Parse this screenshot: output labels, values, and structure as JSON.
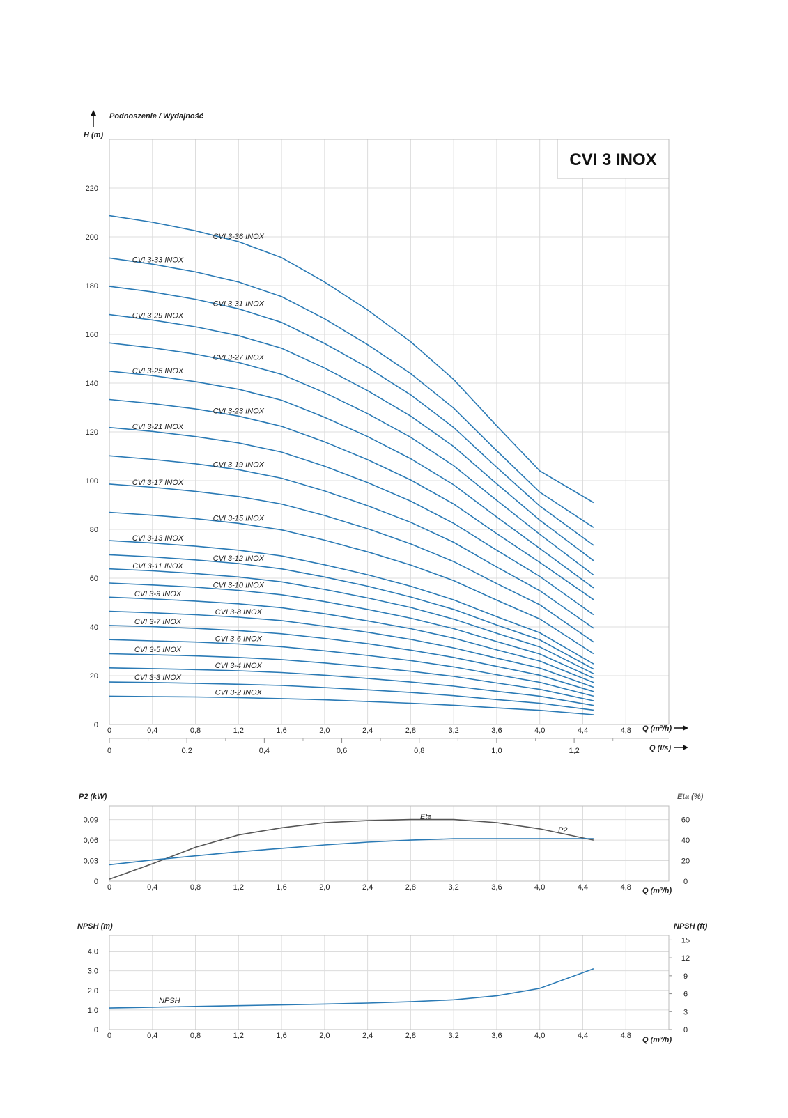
{
  "model_title": "CVI 3 INOX",
  "colors": {
    "curve": "#2a7ab5",
    "eta": "#555555",
    "grid": "#dcdcdc",
    "frame": "#bcbcbc"
  },
  "chart_data": [
    {
      "id": "head",
      "type": "line",
      "header": "Podnoszenie / Wydajność",
      "ylabel": "H (m)",
      "xlabel": "Q (m³/h)",
      "x2label": "Q (l/s)",
      "xlim": [
        0,
        5.2
      ],
      "ylim": [
        0,
        240
      ],
      "grid": true,
      "x_ticks": [
        "0",
        "0,4",
        "0,8",
        "1,2",
        "1,6",
        "2,0",
        "2,4",
        "2,8",
        "3,2",
        "3,6",
        "4,0",
        "4,4",
        "4,8"
      ],
      "x2_ticks": [
        "0",
        "0,2",
        "0,4",
        "0,6",
        "0,8",
        "1,0",
        "1,2"
      ],
      "y_ticks": [
        "0",
        "20",
        "40",
        "60",
        "80",
        "100",
        "120",
        "140",
        "160",
        "180",
        "200",
        "220"
      ],
      "x": [
        0,
        0.4,
        0.8,
        1.2,
        1.6,
        2.0,
        2.4,
        2.8,
        3.2,
        3.6,
        4.0,
        4.5
      ],
      "series": [
        {
          "name": "CVI 3-36 INOX",
          "values": [
            208.7,
            206.0,
            202.5,
            198.0,
            191.5,
            181.5,
            170.0,
            157.0,
            141.5,
            122.5,
            104.0,
            91.0
          ]
        },
        {
          "name": "CVI 3-33 INOX",
          "values": [
            191.3,
            188.8,
            185.6,
            181.5,
            175.5,
            166.4,
            155.8,
            143.9,
            129.7,
            112.3,
            95.3,
            80.8
          ]
        },
        {
          "name": "CVI 3-31 INOX",
          "values": [
            179.7,
            177.4,
            174.4,
            170.5,
            164.9,
            156.3,
            146.4,
            135.2,
            121.8,
            105.5,
            89.6,
            73.5
          ]
        },
        {
          "name": "CVI 3-29 INOX",
          "values": [
            168.1,
            165.9,
            163.1,
            159.5,
            154.3,
            146.2,
            136.9,
            126.5,
            114.0,
            98.7,
            83.8,
            67.2
          ]
        },
        {
          "name": "CVI 3-27 INOX",
          "values": [
            156.5,
            154.5,
            151.9,
            148.5,
            143.6,
            136.1,
            127.5,
            117.8,
            106.1,
            91.9,
            78.0,
            61.3
          ]
        },
        {
          "name": "CVI 3-25 INOX",
          "values": [
            144.9,
            143.1,
            140.6,
            137.5,
            133.0,
            126.0,
            118.1,
            109.0,
            98.3,
            85.1,
            72.2,
            56.0
          ]
        },
        {
          "name": "CVI 3-23 INOX",
          "values": [
            133.3,
            131.6,
            129.4,
            126.5,
            122.3,
            115.9,
            108.6,
            100.3,
            90.4,
            78.3,
            66.5,
            51.2
          ]
        },
        {
          "name": "CVI 3-21 INOX",
          "values": [
            121.8,
            120.2,
            118.1,
            115.5,
            111.7,
            105.9,
            99.2,
            91.6,
            82.5,
            71.5,
            60.7,
            45.0
          ]
        },
        {
          "name": "CVI 3-19 INOX",
          "values": [
            110.2,
            108.7,
            106.9,
            104.5,
            101.0,
            95.8,
            89.7,
            82.9,
            74.7,
            64.6,
            54.9,
            39.5
          ]
        },
        {
          "name": "CVI 3-17 INOX",
          "values": [
            98.6,
            97.3,
            95.6,
            93.5,
            90.4,
            85.7,
            80.3,
            74.1,
            66.8,
            57.8,
            49.1,
            33.8
          ]
        },
        {
          "name": "CVI 3-15 INOX",
          "values": [
            87.0,
            85.8,
            84.4,
            82.5,
            79.8,
            75.6,
            70.8,
            65.4,
            59.0,
            51.0,
            43.3,
            29.0
          ]
        },
        {
          "name": "CVI 3-13 INOX",
          "values": [
            75.4,
            74.4,
            73.1,
            71.5,
            69.1,
            65.5,
            61.4,
            56.7,
            51.1,
            44.2,
            37.6,
            24.8
          ]
        },
        {
          "name": "CVI 3-12 INOX",
          "values": [
            69.6,
            68.7,
            67.5,
            66.0,
            63.8,
            60.5,
            56.7,
            52.3,
            47.2,
            40.8,
            34.7,
            22.7
          ]
        },
        {
          "name": "CVI 3-11 INOX",
          "values": [
            63.8,
            63.0,
            61.9,
            60.5,
            58.5,
            55.4,
            51.9,
            48.0,
            43.2,
            37.4,
            31.8,
            20.8
          ]
        },
        {
          "name": "CVI 3-10 INOX",
          "values": [
            58.0,
            57.2,
            56.3,
            55.0,
            53.2,
            50.4,
            47.2,
            43.6,
            39.3,
            34.0,
            28.9,
            19.0
          ]
        },
        {
          "name": "CVI 3-9 INOX",
          "values": [
            52.2,
            51.5,
            50.6,
            49.5,
            47.9,
            45.4,
            42.5,
            39.3,
            35.4,
            30.6,
            26.0,
            17.2
          ]
        },
        {
          "name": "CVI 3-8 INOX",
          "values": [
            46.4,
            45.8,
            45.0,
            44.0,
            42.6,
            40.3,
            37.8,
            34.9,
            31.4,
            27.2,
            23.1,
            15.3
          ]
        },
        {
          "name": "CVI 3-7 INOX",
          "values": [
            40.6,
            40.1,
            39.4,
            38.5,
            37.2,
            35.3,
            33.1,
            30.5,
            27.5,
            23.8,
            20.2,
            13.5
          ]
        },
        {
          "name": "CVI 3-6 INOX",
          "values": [
            34.8,
            34.3,
            33.8,
            33.0,
            31.9,
            30.2,
            28.3,
            26.2,
            23.6,
            20.4,
            17.3,
            11.6
          ]
        },
        {
          "name": "CVI 3-5 INOX",
          "values": [
            29.0,
            28.6,
            28.1,
            27.5,
            26.6,
            25.2,
            23.6,
            21.8,
            19.7,
            17.0,
            14.4,
            9.7
          ]
        },
        {
          "name": "CVI 3-4 INOX",
          "values": [
            23.2,
            22.9,
            22.5,
            22.0,
            21.3,
            20.2,
            18.9,
            17.4,
            15.7,
            13.6,
            11.6,
            7.8
          ]
        },
        {
          "name": "CVI 3-3 INOX",
          "values": [
            17.4,
            17.2,
            16.9,
            16.5,
            16.0,
            15.1,
            14.2,
            13.1,
            11.8,
            10.2,
            8.7,
            5.9
          ]
        },
        {
          "name": "CVI 3-2 INOX",
          "values": [
            11.6,
            11.4,
            11.3,
            11.0,
            10.6,
            10.1,
            9.4,
            8.7,
            7.9,
            6.8,
            5.8,
            4.0
          ]
        }
      ]
    },
    {
      "id": "power",
      "type": "line",
      "ylabel": "P2 (kW)",
      "y2label": "Eta (%)",
      "xlabel": "Q (m³/h)",
      "xlim": [
        0,
        5.2
      ],
      "ylim": [
        0,
        0.11
      ],
      "y2lim": [
        0,
        73.3
      ],
      "grid": true,
      "x_ticks": [
        "0",
        "0,4",
        "0,8",
        "1,2",
        "1,6",
        "2,0",
        "2,4",
        "2,8",
        "3,2",
        "3,6",
        "4,0",
        "4,4",
        "4,8"
      ],
      "y_ticks": [
        "0",
        "0,03",
        "0,06",
        "0,09"
      ],
      "y2_ticks": [
        "0",
        "20",
        "40",
        "60"
      ],
      "x": [
        0,
        0.4,
        0.8,
        1.2,
        1.6,
        2.0,
        2.4,
        2.8,
        3.2,
        3.6,
        4.0,
        4.5
      ],
      "series": [
        {
          "name": "P2",
          "axis": "left",
          "values": [
            0.024,
            0.031,
            0.037,
            0.043,
            0.048,
            0.053,
            0.057,
            0.06,
            0.062,
            0.062,
            0.062,
            0.062
          ]
        },
        {
          "name": "Eta",
          "axis": "right",
          "values": [
            2,
            17,
            33,
            45,
            52,
            57,
            59,
            60,
            60,
            57,
            51,
            40
          ]
        }
      ]
    },
    {
      "id": "npsh",
      "type": "line",
      "ylabel": "NPSH (m)",
      "y2label": "NPSH (ft)",
      "xlabel": "Q (m³/h)",
      "xlim": [
        0,
        5.2
      ],
      "ylim": [
        0,
        4.8
      ],
      "y2lim": [
        0,
        15.75
      ],
      "grid": true,
      "x_ticks": [
        "0",
        "0,4",
        "0,8",
        "1,2",
        "1,6",
        "2,0",
        "2,4",
        "2,8",
        "3,2",
        "3,6",
        "4,0",
        "4,4",
        "4,8"
      ],
      "y_ticks": [
        "0",
        "1,0",
        "2,0",
        "3,0",
        "4,0"
      ],
      "y2_ticks": [
        "0",
        "3",
        "6",
        "9",
        "12",
        "15"
      ],
      "x": [
        0,
        0.4,
        0.8,
        1.2,
        1.6,
        2.0,
        2.4,
        2.8,
        3.2,
        3.6,
        4.0,
        4.5
      ],
      "series": [
        {
          "name": "NPSH",
          "values": [
            1.1,
            1.14,
            1.18,
            1.22,
            1.26,
            1.3,
            1.35,
            1.42,
            1.52,
            1.72,
            2.1,
            3.1
          ]
        }
      ]
    }
  ]
}
